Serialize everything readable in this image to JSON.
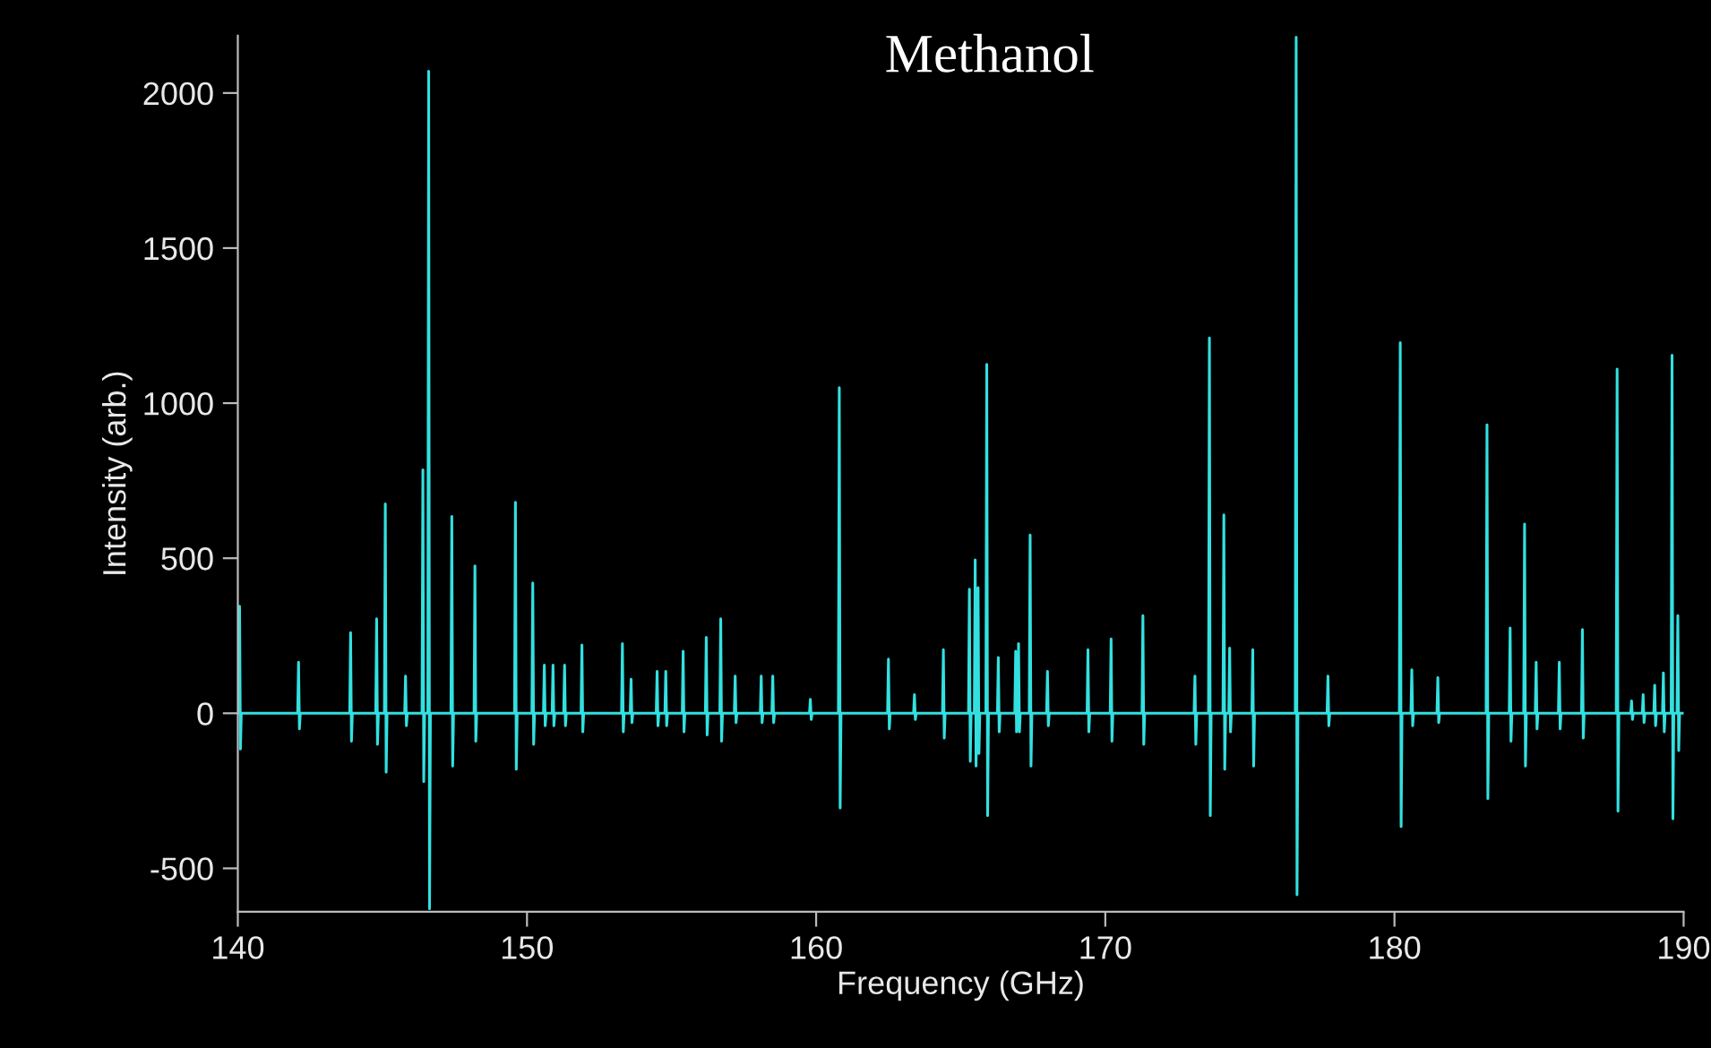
{
  "chart_data": {
    "type": "line",
    "title": "Methanol",
    "xlabel": "Frequency (GHz)",
    "ylabel": "Intensity (arb.)",
    "xlim": [
      140,
      190
    ],
    "xticks": [
      140,
      150,
      160,
      170,
      180,
      190
    ],
    "ylim": [
      -640,
      2185
    ],
    "yticks": [
      -500,
      0,
      500,
      1000,
      1500,
      2000
    ],
    "marker": "none",
    "line_style": "solid",
    "series": [
      {
        "color": "#33e0e0",
        "x": [
          140.03,
          140.06,
          140.09,
          140.12,
          142.07,
          142.1,
          142.13,
          142.16,
          143.87,
          143.9,
          143.93,
          143.96,
          144.77,
          144.8,
          144.83,
          144.86,
          145.07,
          145.1,
          145.13,
          145.16,
          145.77,
          145.8,
          145.83,
          145.86,
          146.37,
          146.4,
          146.43,
          146.46,
          146.57,
          146.6,
          146.63,
          146.66,
          147.37,
          147.4,
          147.43,
          147.46,
          148.17,
          148.2,
          148.23,
          148.26,
          149.57,
          149.6,
          149.63,
          149.66,
          150.17,
          150.2,
          150.23,
          150.26,
          150.57,
          150.6,
          150.63,
          150.66,
          150.87,
          150.9,
          150.93,
          150.96,
          151.27,
          151.3,
          151.33,
          151.36,
          151.87,
          151.9,
          151.93,
          151.96,
          153.27,
          153.3,
          153.33,
          153.36,
          153.57,
          153.6,
          153.63,
          153.66,
          154.47,
          154.5,
          154.53,
          154.56,
          154.77,
          154.8,
          154.83,
          154.86,
          155.37,
          155.4,
          155.43,
          155.46,
          156.17,
          156.2,
          156.23,
          156.26,
          156.67,
          156.7,
          156.73,
          156.76,
          157.17,
          157.2,
          157.23,
          157.26,
          158.07,
          158.1,
          158.13,
          158.16,
          158.47,
          158.5,
          158.53,
          158.56,
          159.77,
          159.8,
          159.83,
          159.86,
          160.77,
          160.8,
          160.83,
          160.86,
          162.47,
          162.5,
          162.53,
          162.56,
          163.37,
          163.4,
          163.43,
          163.46,
          164.37,
          164.4,
          164.43,
          164.46,
          165.27,
          165.3,
          165.33,
          165.36,
          165.47,
          165.5,
          165.53,
          165.56,
          165.57,
          165.6,
          165.63,
          165.66,
          165.87,
          165.9,
          165.93,
          165.96,
          166.27,
          166.3,
          166.33,
          166.36,
          166.87,
          166.9,
          166.93,
          166.96,
          166.97,
          167.0,
          167.03,
          167.06,
          167.37,
          167.4,
          167.43,
          167.46,
          167.97,
          168.0,
          168.03,
          168.06,
          169.37,
          169.4,
          169.43,
          169.46,
          170.17,
          170.2,
          170.23,
          170.26,
          171.27,
          171.3,
          171.33,
          171.36,
          173.07,
          173.1,
          173.13,
          173.16,
          173.57,
          173.6,
          173.63,
          173.66,
          174.07,
          174.1,
          174.13,
          174.16,
          174.27,
          174.3,
          174.33,
          174.36,
          175.07,
          175.1,
          175.13,
          175.16,
          176.57,
          176.6,
          176.63,
          176.66,
          177.67,
          177.7,
          177.73,
          177.76,
          180.17,
          180.2,
          180.23,
          180.26,
          180.57,
          180.6,
          180.63,
          180.66,
          181.47,
          181.5,
          181.53,
          181.56,
          183.17,
          183.2,
          183.23,
          183.26,
          183.97,
          184.0,
          184.03,
          184.06,
          184.47,
          184.5,
          184.53,
          184.56,
          184.87,
          184.9,
          184.93,
          184.96,
          185.67,
          185.7,
          185.73,
          185.76,
          186.47,
          186.5,
          186.53,
          186.56,
          187.67,
          187.7,
          187.73,
          187.76,
          188.17,
          188.2,
          188.23,
          188.26,
          188.57,
          188.6,
          188.63,
          188.66,
          188.97,
          189.0,
          189.03,
          189.06,
          189.27,
          189.3,
          189.33,
          189.36,
          189.57,
          189.6,
          189.63,
          189.66,
          189.77,
          189.8,
          189.83,
          189.86,
          190.0
        ],
        "values": [
          0,
          345,
          -115,
          0,
          0,
          165,
          -50,
          0,
          0,
          260,
          -90,
          0,
          0,
          305,
          -100,
          0,
          0,
          675,
          -190,
          0,
          0,
          120,
          -40,
          0,
          0,
          785,
          -220,
          0,
          0,
          2070,
          -630,
          0,
          0,
          635,
          -170,
          0,
          0,
          475,
          -90,
          0,
          0,
          680,
          -180,
          0,
          0,
          420,
          -100,
          0,
          0,
          155,
          -40,
          0,
          0,
          155,
          -40,
          0,
          0,
          155,
          -40,
          0,
          0,
          220,
          -60,
          0,
          0,
          225,
          -60,
          0,
          0,
          110,
          -30,
          0,
          0,
          135,
          -40,
          0,
          0,
          135,
          -40,
          0,
          0,
          200,
          -60,
          0,
          0,
          245,
          -70,
          0,
          0,
          305,
          -90,
          0,
          0,
          120,
          -30,
          0,
          0,
          120,
          -30,
          0,
          0,
          120,
          -30,
          0,
          0,
          45,
          -20,
          0,
          0,
          1050,
          -305,
          0,
          0,
          175,
          -50,
          0,
          0,
          60,
          -20,
          0,
          0,
          205,
          -80,
          0,
          0,
          400,
          -155,
          0,
          0,
          495,
          -170,
          0,
          0,
          405,
          -130,
          0,
          0,
          1125,
          -330,
          0,
          0,
          180,
          -60,
          0,
          0,
          200,
          -60,
          0,
          0,
          225,
          -60,
          0,
          0,
          575,
          -170,
          0,
          0,
          135,
          -40,
          0,
          0,
          205,
          -60,
          0,
          0,
          240,
          -90,
          0,
          0,
          315,
          -100,
          0,
          0,
          120,
          -100,
          0,
          0,
          1210,
          -330,
          0,
          0,
          640,
          -180,
          0,
          0,
          210,
          -60,
          0,
          0,
          205,
          -170,
          0,
          0,
          2180,
          -585,
          0,
          0,
          120,
          -40,
          0,
          0,
          1195,
          -365,
          0,
          0,
          140,
          -40,
          0,
          0,
          115,
          -30,
          0,
          0,
          930,
          -275,
          0,
          0,
          275,
          -90,
          0,
          0,
          610,
          -170,
          0,
          0,
          165,
          -50,
          0,
          0,
          165,
          -50,
          0,
          0,
          270,
          -80,
          0,
          0,
          1110,
          -315,
          0,
          0,
          40,
          -20,
          0,
          0,
          60,
          -30,
          0,
          0,
          90,
          -40,
          0,
          0,
          130,
          -60,
          0,
          0,
          1155,
          -340,
          0,
          0,
          315,
          -120,
          0,
          0
        ]
      }
    ]
  }
}
